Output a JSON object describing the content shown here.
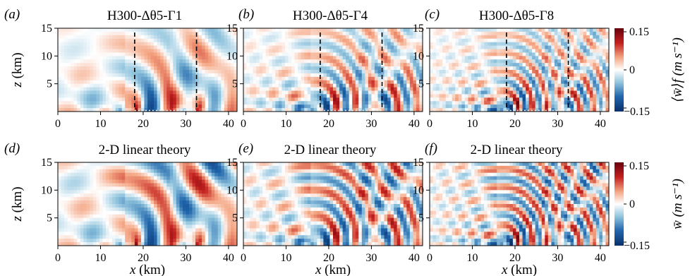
{
  "figure": {
    "colormap": {
      "low": "#08306b",
      "mid": "#ffffff",
      "high": "#67000d"
    },
    "panels": [
      {
        "id": "a",
        "tag": "(a)",
        "title": "H300-Δθ5-Γ1",
        "row": 0,
        "col": 0,
        "wavenumber": 0.5,
        "decay": 0.035,
        "lee_rays": 2,
        "ylabel": "z (km)"
      },
      {
        "id": "b",
        "tag": "(b)",
        "title": "H300-Δθ5-Γ4",
        "row": 0,
        "col": 1,
        "wavenumber": 1.0,
        "decay": 0.03,
        "lee_rays": 3
      },
      {
        "id": "c",
        "tag": "(c)",
        "title": "H300-Δθ5-Γ8",
        "row": 0,
        "col": 2,
        "wavenumber": 1.35,
        "decay": 0.028,
        "lee_rays": 3
      },
      {
        "id": "d",
        "tag": "(d)",
        "title": "2-D linear theory",
        "row": 1,
        "col": 0,
        "wavenumber": 0.5,
        "decay": 0.0,
        "lee_rays": 2,
        "ylabel": "z (km)",
        "xlabel": "x (km)"
      },
      {
        "id": "e",
        "tag": "(e)",
        "title": "2-D linear theory",
        "row": 1,
        "col": 1,
        "wavenumber": 1.0,
        "decay": 0.0,
        "lee_rays": 3,
        "xlabel": "x (km)"
      },
      {
        "id": "f",
        "tag": "(f)",
        "title": "2-D linear theory",
        "row": 1,
        "col": 2,
        "wavenumber": 1.35,
        "decay": 0.0,
        "lee_rays": 3,
        "xlabel": "x (km)"
      }
    ],
    "colorbars": [
      {
        "row": 0,
        "label": "⟨w̄⟩f (m s⁻¹)",
        "ticks": [
          "0.15",
          "0",
          "−0.15"
        ]
      },
      {
        "row": 1,
        "label": "w̄ (m s⁻¹)",
        "ticks": [
          "0.15",
          "0",
          "−0.15"
        ]
      }
    ]
  },
  "chart_data": {
    "type": "heatmap",
    "xlabel": "x (km)",
    "ylabel": "z (km)",
    "xlim": [
      0,
      42
    ],
    "ylim": [
      0,
      15
    ],
    "xticks": [
      "0",
      "10",
      "20",
      "30",
      "40"
    ],
    "yticks": [
      "5",
      "10",
      "15"
    ],
    "clim": [
      -0.15,
      0.15
    ],
    "dashed_lines_x_km": [
      18,
      32.5
    ],
    "panels_top_row_have_dashed_lines": true
  }
}
